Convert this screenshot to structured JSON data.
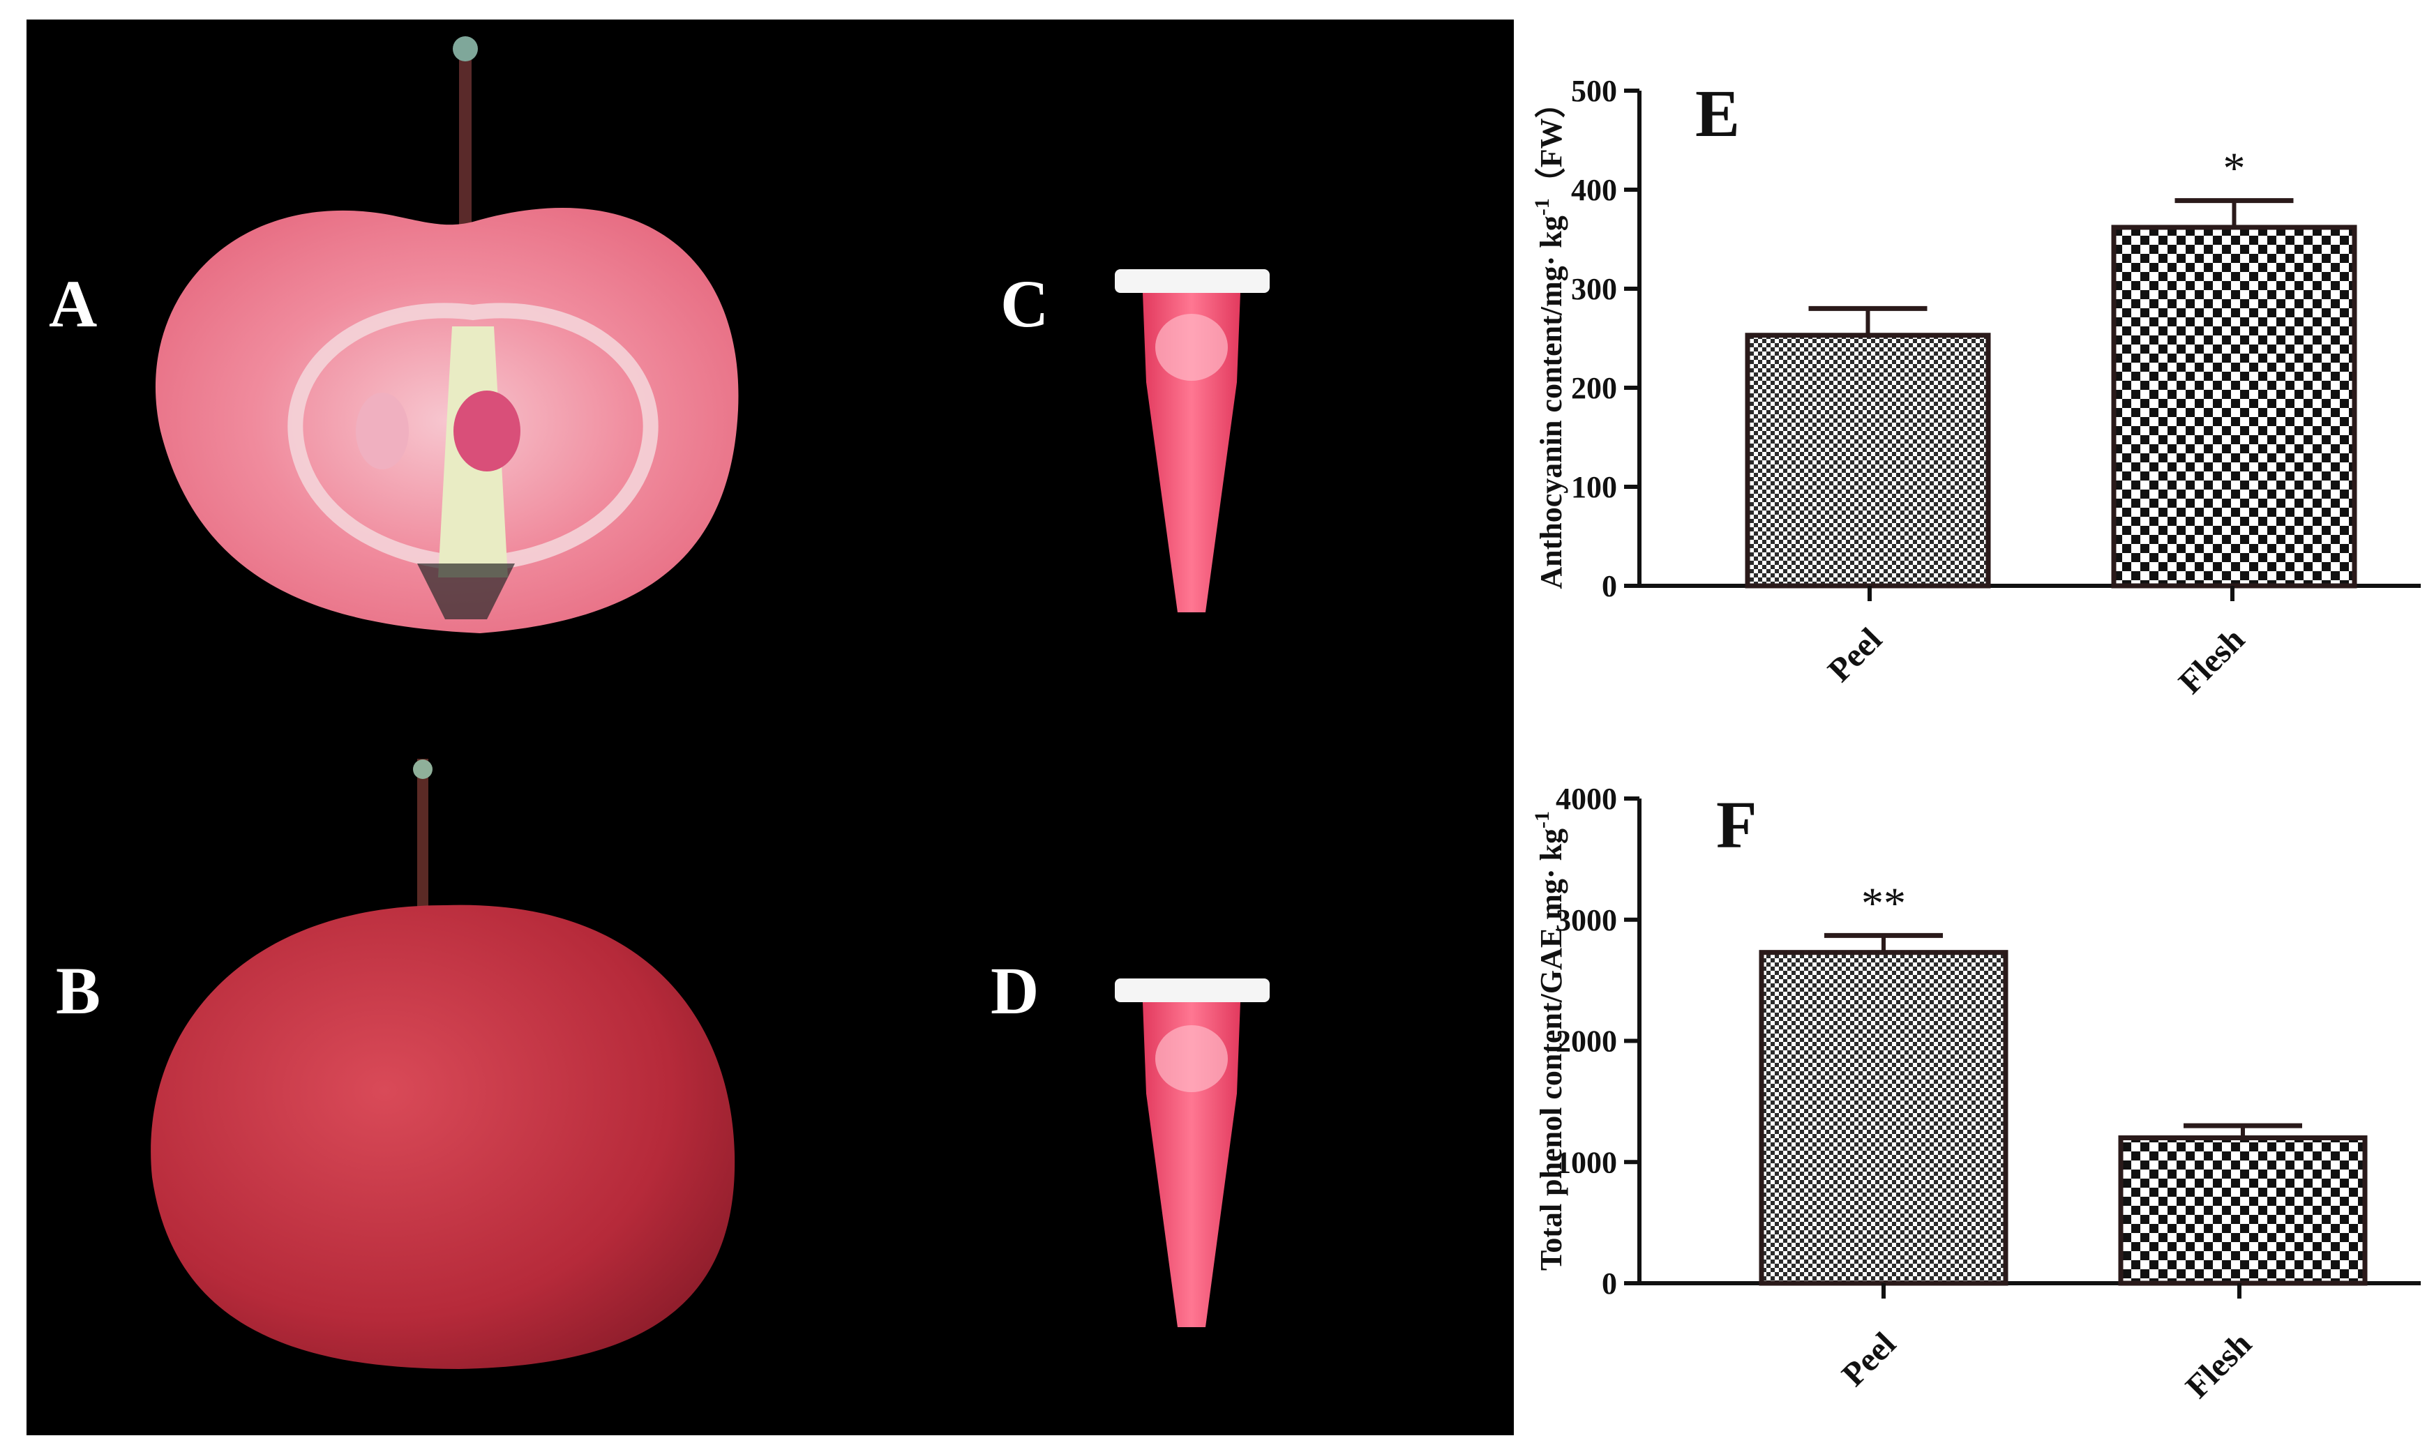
{
  "panels": {
    "A": "A",
    "B": "B",
    "C": "C",
    "D": "D"
  },
  "colors": {
    "photo_background": "#000000",
    "apple_flesh": "#ef7f92",
    "apple_core": "#f3d9c7",
    "apple_skin": "#c7303f",
    "tube_liquid": "#ff5a7a",
    "bar_edge": "#2a1a1a",
    "axis": "#111111"
  },
  "chart_data": [
    {
      "panel_label": "E",
      "type": "bar",
      "categories": [
        "Peel",
        "Flesh"
      ],
      "values": [
        253,
        362
      ],
      "errors": [
        27,
        27
      ],
      "significance": [
        "",
        "*"
      ],
      "ylabel": "Anthocyanin content/mg· kg",
      "ylabel_sup": "-1",
      "ylabel_suffix": "（FW）",
      "ylim": [
        0,
        500
      ],
      "yticks": [
        "0",
        "100",
        "200",
        "300",
        "400",
        "500"
      ],
      "patterns": [
        "fine-checker",
        "coarse-checker"
      ]
    },
    {
      "panel_label": "F",
      "type": "bar",
      "categories": [
        "Peel",
        "Flesh"
      ],
      "values": [
        2730,
        1200
      ],
      "errors": [
        140,
        100
      ],
      "significance": [
        "**",
        ""
      ],
      "ylabel": "Total phenol content/GAE mg· kg",
      "ylabel_sup": "-1",
      "ylabel_suffix": "",
      "ylim": [
        0,
        4000
      ],
      "yticks": [
        "0",
        "1000",
        "2000",
        "3000",
        "4000"
      ],
      "patterns": [
        "fine-checker",
        "coarse-checker"
      ]
    }
  ]
}
